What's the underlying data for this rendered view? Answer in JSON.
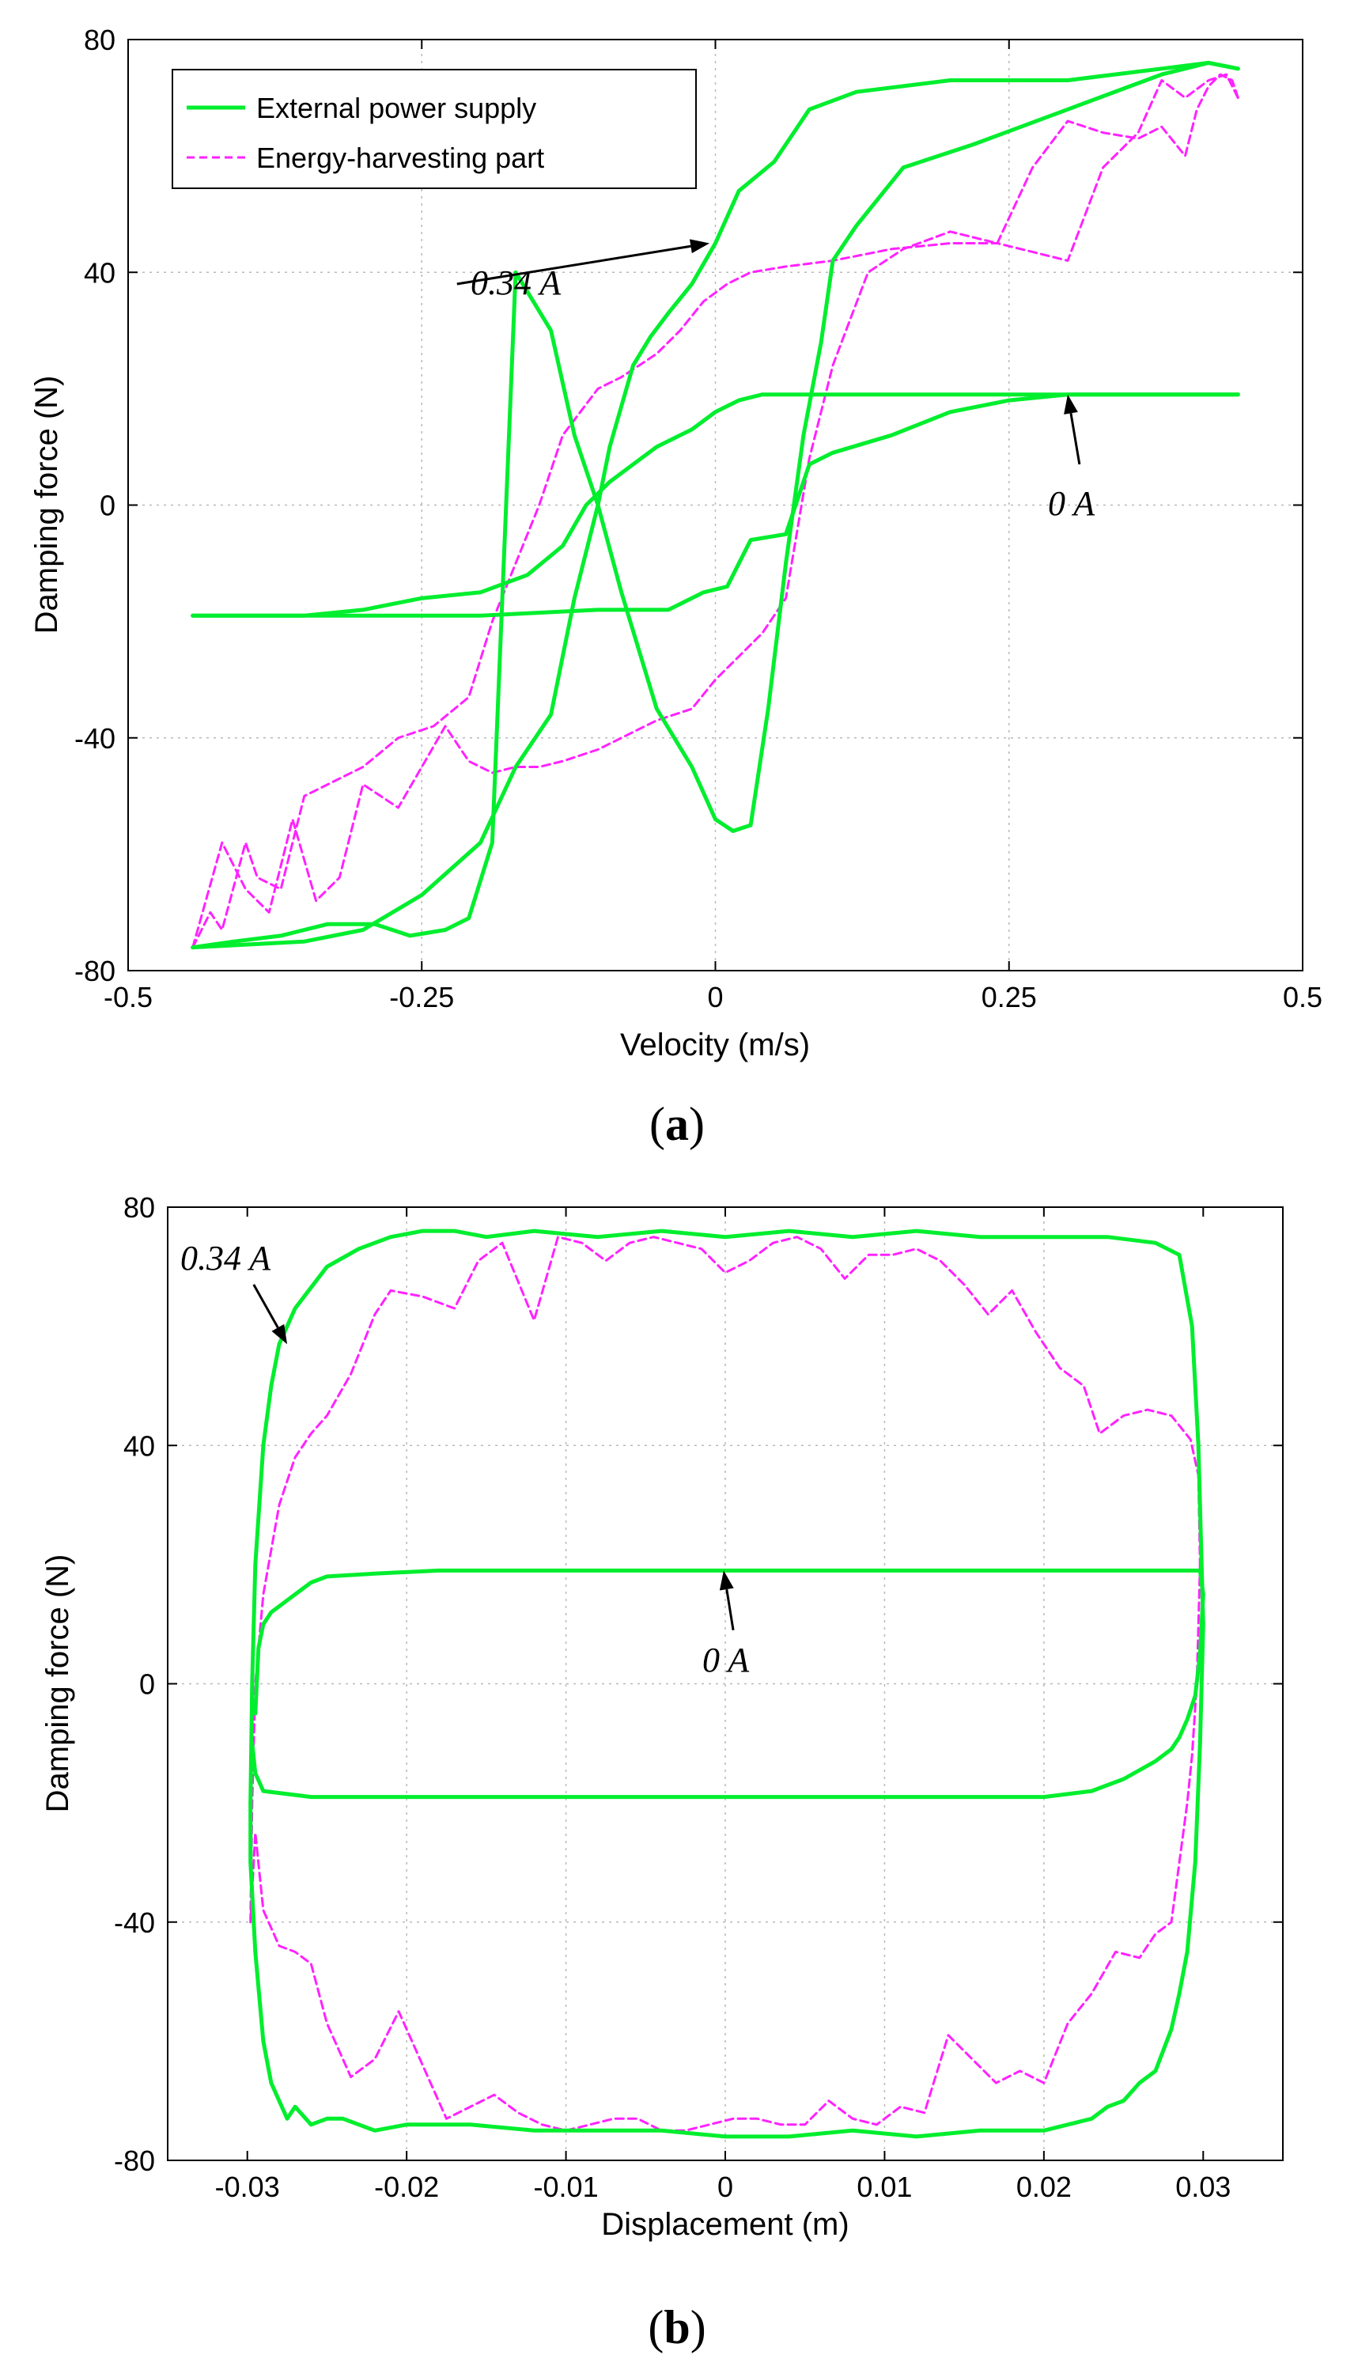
{
  "colors": {
    "external": "#00ee2e",
    "harvesting": "#ff22ff"
  },
  "legend": {
    "external": "External power supply",
    "harvesting": "Energy-harvesting part"
  },
  "chart_data": [
    {
      "type": "line",
      "panel_label": "a",
      "xlabel": "Velocity (m/s)",
      "ylabel": "Damping force (N)",
      "xlim": [
        -0.5,
        0.5
      ],
      "ylim": [
        -80,
        80
      ],
      "xticks": [
        -0.5,
        -0.25,
        0,
        0.25,
        0.5
      ],
      "xtick_labels": [
        "-0.5",
        "-0.25",
        "0",
        "0.25",
        "0.5"
      ],
      "yticks": [
        -80,
        -40,
        0,
        40,
        80
      ],
      "ytick_labels": [
        "-80",
        "-40",
        "0",
        "40",
        "80"
      ],
      "grid": true,
      "legend_position": "top-left",
      "annotations": [
        {
          "text": "0.34 A",
          "from": [
            -0.22,
            38
          ],
          "to": [
            -0.005,
            45
          ]
        },
        {
          "text": "0 A",
          "from": [
            0.31,
            7
          ],
          "to": [
            0.3,
            19
          ]
        }
      ],
      "series": [
        {
          "name": "External power supply",
          "key": "external",
          "style": "solid",
          "x": [
            -0.445,
            -0.35,
            -0.3,
            -0.25,
            -0.2,
            -0.17,
            -0.14,
            -0.12,
            -0.1,
            -0.09,
            -0.07,
            -0.055,
            -0.04,
            -0.02,
            0,
            0.02,
            0.05,
            0.08,
            0.12,
            0.2,
            0.3,
            0.38,
            0.42,
            0.445
          ],
          "y": [
            -76,
            -75,
            -73,
            -67,
            -58,
            -45,
            -36,
            -16,
            0,
            10,
            24,
            29,
            33,
            38,
            45,
            54,
            59,
            68,
            71,
            73,
            73,
            75,
            76,
            75
          ]
        },
        {
          "name": "External power supply",
          "key": "external",
          "style": "solid",
          "x": [
            0.445,
            0.42,
            0.38,
            0.3,
            0.22,
            0.16,
            0.12,
            0.1,
            0.09,
            0.075,
            0.06,
            0.045,
            0.03,
            0.015,
            0,
            -0.02,
            -0.05,
            -0.08,
            -0.1,
            -0.12,
            -0.14,
            -0.17,
            -0.19,
            -0.21,
            -0.23,
            -0.26,
            -0.29,
            -0.33,
            -0.37,
            -0.41,
            -0.445
          ],
          "y": [
            75,
            76,
            74,
            68,
            62,
            58,
            48,
            42,
            28,
            12,
            -10,
            -35,
            -55,
            -56,
            -54,
            -45,
            -35,
            -15,
            0,
            12,
            30,
            40,
            -58,
            -71,
            -73,
            -74,
            -72,
            -72,
            -74,
            -75,
            -76
          ]
        },
        {
          "name": "External power supply",
          "key": "external",
          "style": "solid",
          "x": [
            -0.445,
            -0.35,
            -0.3,
            -0.25,
            -0.2,
            -0.16,
            -0.13,
            -0.11,
            -0.09,
            -0.07,
            -0.05,
            -0.02,
            0,
            0.02,
            0.04,
            0.06,
            0.1,
            0.2,
            0.3,
            0.445
          ],
          "y": [
            -19,
            -19,
            -18,
            -16,
            -15,
            -12,
            -7,
            0,
            4,
            7,
            10,
            13,
            16,
            18,
            19,
            19,
            19,
            19,
            19,
            19
          ]
        },
        {
          "name": "External power supply",
          "key": "external",
          "style": "solid",
          "x": [
            0.445,
            0.3,
            0.25,
            0.2,
            0.15,
            0.1,
            0.08,
            0.06,
            0.03,
            0.01,
            -0.01,
            -0.04,
            -0.1,
            -0.2,
            -0.3,
            -0.38,
            -0.445
          ],
          "y": [
            19,
            19,
            18,
            16,
            12,
            9,
            7,
            -5,
            -6,
            -14,
            -15,
            -18,
            -18,
            -19,
            -19,
            -19,
            -19
          ]
        },
        {
          "name": "Energy-harvesting part",
          "key": "harvesting",
          "style": "dashed",
          "x": [
            -0.445,
            -0.44,
            -0.43,
            -0.42,
            -0.4,
            -0.39,
            -0.37,
            -0.35,
            -0.33,
            -0.3,
            -0.27,
            -0.24,
            -0.21,
            -0.19,
            -0.17,
            -0.15,
            -0.13,
            -0.1,
            -0.08,
            -0.05,
            -0.03,
            -0.01,
            0.01,
            0.03,
            0.06,
            0.1,
            0.15,
            0.2,
            0.24,
            0.26,
            0.3,
            0.33,
            0.36,
            0.38,
            0.4,
            0.42,
            0.435,
            0.445
          ],
          "y": [
            -76,
            -74,
            -70,
            -73,
            -58,
            -64,
            -66,
            -50,
            -48,
            -45,
            -40,
            -38,
            -33,
            -20,
            -10,
            0,
            12,
            20,
            22,
            26,
            30,
            35,
            38,
            40,
            41,
            42,
            44,
            45,
            45,
            44,
            42,
            58,
            64,
            73,
            70,
            73,
            74,
            70
          ]
        },
        {
          "name": "Energy-harvesting part",
          "key": "harvesting",
          "style": "dashed",
          "x": [
            0.445,
            0.44,
            0.43,
            0.42,
            0.41,
            0.4,
            0.38,
            0.36,
            0.33,
            0.3,
            0.27,
            0.24,
            0.2,
            0.16,
            0.13,
            0.1,
            0.08,
            0.06,
            0.04,
            0.02,
            0,
            -0.02,
            -0.05,
            -0.08,
            -0.1,
            -0.13,
            -0.15,
            -0.17,
            -0.19,
            -0.21,
            -0.23,
            -0.25,
            -0.27,
            -0.3,
            -0.32,
            -0.34,
            -0.36,
            -0.38,
            -0.4,
            -0.42,
            -0.445
          ],
          "y": [
            70,
            73,
            74,
            72,
            68,
            60,
            65,
            63,
            64,
            66,
            58,
            45,
            47,
            44,
            40,
            24,
            8,
            -16,
            -22,
            -26,
            -30,
            -35,
            -37,
            -40,
            -42,
            -44,
            -45,
            -45,
            -46,
            -44,
            -38,
            -45,
            -52,
            -48,
            -64,
            -68,
            -54,
            -70,
            -66,
            -58,
            -76
          ]
        }
      ]
    },
    {
      "type": "line",
      "panel_label": "b",
      "xlabel": "Displacement (m)",
      "ylabel": "Damping force (N)",
      "xlim": [
        -0.035,
        0.035
      ],
      "ylim": [
        -80,
        80
      ],
      "xticks": [
        -0.03,
        -0.02,
        -0.01,
        0,
        0.01,
        0.02,
        0.03
      ],
      "xtick_labels": [
        "-0.03",
        "-0.02",
        "-0.01",
        "0",
        "0.01",
        "0.02",
        "0.03"
      ],
      "yticks": [
        -80,
        -40,
        0,
        40,
        80
      ],
      "ytick_labels": [
        "-80",
        "-40",
        "0",
        "40",
        "80"
      ],
      "grid": true,
      "annotations": [
        {
          "text": "0.34 A",
          "from": [
            -0.0296,
            67
          ],
          "to": [
            -0.0275,
            57
          ]
        },
        {
          "text": "0 A",
          "from": [
            0.0005,
            9
          ],
          "to": [
            -0.0001,
            19
          ]
        }
      ],
      "series": [
        {
          "name": "External power supply",
          "key": "external",
          "style": "solid",
          "x": [
            -0.0298,
            -0.0297,
            -0.0295,
            -0.029,
            -0.0285,
            -0.028,
            -0.027,
            -0.025,
            -0.023,
            -0.021,
            -0.019,
            -0.017,
            -0.015,
            -0.012,
            -0.008,
            -0.004,
            0,
            0.004,
            0.008,
            0.012,
            0.016,
            0.02,
            0.024,
            0.027,
            0.0285,
            0.0293,
            0.0297,
            0.03
          ],
          "y": [
            -20,
            0,
            20,
            40,
            50,
            57,
            63,
            70,
            73,
            75,
            76,
            76,
            75,
            76,
            75,
            76,
            75,
            76,
            75,
            76,
            75,
            75,
            75,
            74,
            72,
            60,
            40,
            10
          ]
        },
        {
          "name": "External power supply",
          "key": "external",
          "style": "solid",
          "x": [
            0.03,
            0.0298,
            0.0295,
            0.029,
            0.0285,
            0.028,
            0.027,
            0.026,
            0.025,
            0.024,
            0.023,
            0.02,
            0.016,
            0.012,
            0.008,
            0.004,
            0,
            -0.004,
            -0.008,
            -0.012,
            -0.016,
            -0.02,
            -0.022,
            -0.024,
            -0.025,
            -0.026,
            -0.027,
            -0.0275,
            -0.0285,
            -0.029,
            -0.0295,
            -0.0298,
            -0.0298
          ],
          "y": [
            10,
            -10,
            -30,
            -45,
            -52,
            -58,
            -65,
            -67,
            -70,
            -71,
            -73,
            -75,
            -75,
            -76,
            -75,
            -76,
            -76,
            -75,
            -75,
            -75,
            -74,
            -74,
            -75,
            -73,
            -73,
            -74,
            -71,
            -73,
            -67,
            -60,
            -45,
            -30,
            -20
          ]
        },
        {
          "name": "External power supply",
          "key": "external",
          "style": "solid",
          "x": [
            -0.0295,
            -0.0293,
            -0.029,
            -0.0285,
            -0.028,
            -0.027,
            -0.026,
            -0.025,
            -0.022,
            -0.018,
            -0.01,
            0,
            0.01,
            0.02,
            0.026,
            0.029,
            0.0298,
            0.03
          ],
          "y": [
            -5,
            6,
            10,
            12,
            13,
            15,
            17,
            18,
            18.5,
            19,
            19,
            19,
            19,
            19,
            19,
            19,
            19,
            15
          ]
        },
        {
          "name": "External power supply",
          "key": "external",
          "style": "solid",
          "x": [
            0.03,
            0.0298,
            0.0295,
            0.029,
            0.0285,
            0.028,
            0.027,
            0.025,
            0.023,
            0.02,
            0.01,
            0,
            -0.01,
            -0.02,
            -0.026,
            -0.029,
            -0.0295,
            -0.0297
          ],
          "y": [
            15,
            5,
            -2,
            -6,
            -9,
            -11,
            -13,
            -16,
            -18,
            -19,
            -19,
            -19,
            -19,
            -19,
            -19,
            -18,
            -15,
            -10
          ]
        },
        {
          "name": "Energy-harvesting part",
          "key": "harvesting",
          "style": "dashed",
          "x": [
            -0.0298,
            -0.0297,
            -0.0295,
            -0.029,
            -0.028,
            -0.027,
            -0.026,
            -0.025,
            -0.0235,
            -0.022,
            -0.021,
            -0.019,
            -0.017,
            -0.0155,
            -0.014,
            -0.012,
            -0.0105,
            -0.009,
            -0.0075,
            -0.006,
            -0.0045,
            -0.003,
            -0.0015,
            0,
            0.0015,
            0.003,
            0.0045,
            0.006,
            0.0075,
            0.009,
            0.0105,
            0.012,
            0.0135,
            0.015,
            0.0165,
            0.018,
            0.0195,
            0.021,
            0.0225,
            0.0235,
            0.025,
            0.0265,
            0.028,
            0.0292,
            0.0297,
            0.0298
          ],
          "y": [
            -40,
            -20,
            0,
            15,
            30,
            38,
            42,
            45,
            52,
            62,
            66,
            65,
            63,
            71,
            74,
            61,
            75,
            74,
            71,
            74,
            75,
            74,
            73,
            69,
            71,
            74,
            75,
            73,
            68,
            72,
            72,
            73,
            71,
            67,
            62,
            66,
            59,
            53,
            50,
            42,
            45,
            46,
            45,
            41,
            35,
            20
          ]
        },
        {
          "name": "Energy-harvesting part",
          "key": "harvesting",
          "style": "dashed",
          "x": [
            0.0298,
            0.0296,
            0.0293,
            0.029,
            0.0285,
            0.028,
            0.027,
            0.026,
            0.0245,
            0.023,
            0.0215,
            0.02,
            0.0185,
            0.017,
            0.0155,
            0.014,
            0.0125,
            0.011,
            0.0095,
            0.008,
            0.0065,
            0.005,
            0.0035,
            0.002,
            0.0005,
            -0.001,
            -0.0025,
            -0.004,
            -0.0055,
            -0.007,
            -0.0085,
            -0.01,
            -0.0115,
            -0.013,
            -0.0145,
            -0.016,
            -0.0175,
            -0.019,
            -0.0205,
            -0.022,
            -0.0235,
            -0.025,
            -0.026,
            -0.027,
            -0.028,
            -0.029,
            -0.0295,
            -0.0298
          ],
          "y": [
            20,
            0,
            -12,
            -20,
            -30,
            -40,
            -42,
            -46,
            -45,
            -52,
            -57,
            -67,
            -65,
            -67,
            -63,
            -59,
            -72,
            -71,
            -74,
            -73,
            -70,
            -74,
            -74,
            -73,
            -73,
            -74,
            -75,
            -75,
            -73,
            -73,
            -74,
            -75,
            -74,
            -72,
            -69,
            -71,
            -73,
            -64,
            -55,
            -63,
            -66,
            -57,
            -47,
            -45,
            -44,
            -38,
            -25,
            -40
          ]
        }
      ]
    }
  ]
}
